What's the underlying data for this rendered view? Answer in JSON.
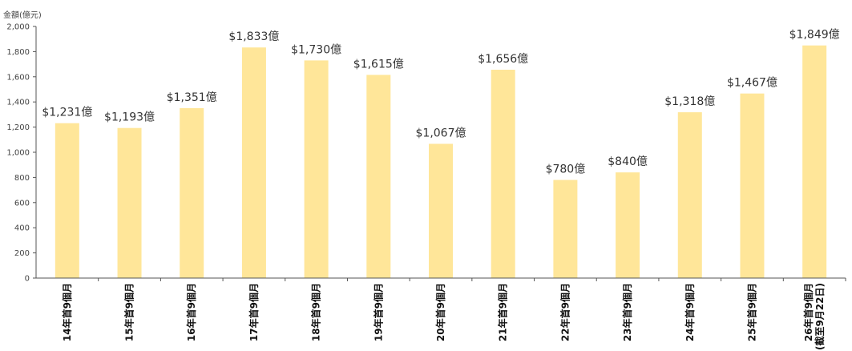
{
  "chart_data": {
    "type": "bar",
    "title": "",
    "xlabel": "",
    "ylabel": "金額(億元)",
    "ylim": [
      0,
      2000
    ],
    "yticks": [
      0,
      200,
      400,
      600,
      800,
      1000,
      1200,
      1400,
      1600,
      1800,
      2000
    ],
    "ytick_labels": [
      "0",
      "200",
      "400",
      "600",
      "800",
      "1,000",
      "1,200",
      "1,400",
      "1,600",
      "1,800",
      "2,000"
    ],
    "grid": false,
    "bar_color": "#FFE699",
    "categories": [
      [
        "14年首9個月"
      ],
      [
        "15年首9個月"
      ],
      [
        "16年首9個月"
      ],
      [
        "17年首9個月"
      ],
      [
        "18年首9個月"
      ],
      [
        "19年首9個月"
      ],
      [
        "20年首9個月"
      ],
      [
        "21年首9個月"
      ],
      [
        "22年首9個月"
      ],
      [
        "23年首9個月"
      ],
      [
        "24年首9個月"
      ],
      [
        "25年首9個月"
      ],
      [
        "26年首9個月",
        "(截至9月22日)"
      ]
    ],
    "values": [
      1231,
      1193,
      1351,
      1833,
      1730,
      1615,
      1067,
      1656,
      780,
      840,
      1318,
      1467,
      1849
    ],
    "data_labels": [
      "$1,231億",
      "$1,193億",
      "$1,351億",
      "$1,833億",
      "$1,730億",
      "$1,615億",
      "$1,067億",
      "$1,656億",
      "$780億",
      "$840億",
      "$1,318億",
      "$1,467億",
      "$1,849億"
    ]
  }
}
